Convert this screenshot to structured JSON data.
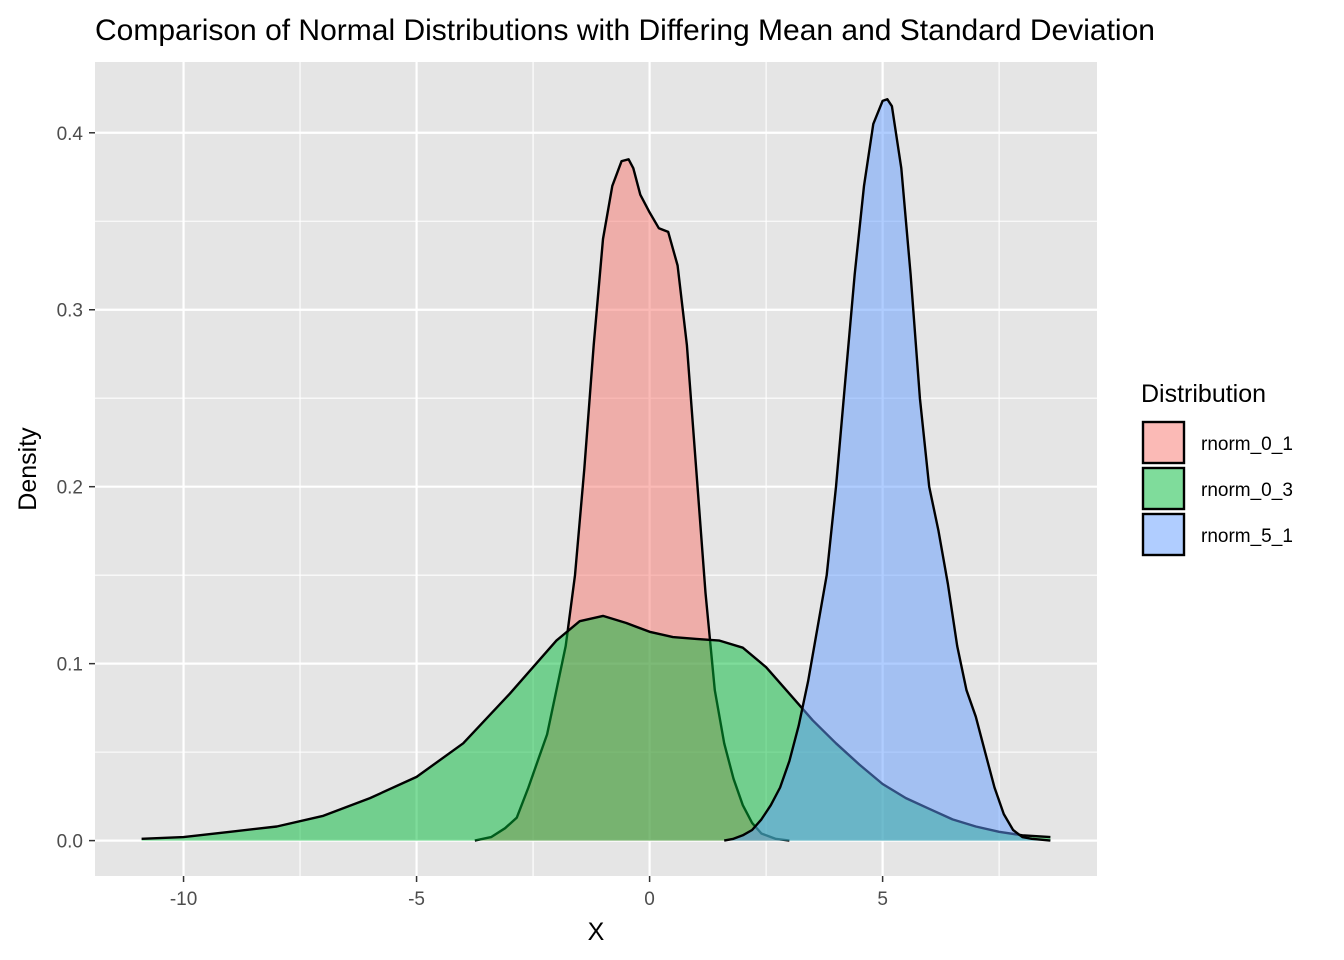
{
  "chart_data": {
    "type": "area",
    "title": "Comparison of Normal Distributions with Differing Mean and Standard Deviation",
    "xlabel": "X",
    "ylabel": "Density",
    "xlim": [
      -11.9,
      9.6
    ],
    "ylim": [
      -0.02,
      0.44
    ],
    "x_ticks": [
      -10,
      -5,
      0,
      5
    ],
    "x_tick_labels": [
      "-10",
      "-5",
      "0",
      "5"
    ],
    "y_ticks": [
      0.0,
      0.1,
      0.2,
      0.3,
      0.4
    ],
    "y_tick_labels": [
      "0.0",
      "0.1",
      "0.2",
      "0.3",
      "0.4"
    ],
    "grid": true,
    "panel_background": "#e5e5e5",
    "legend": {
      "title": "Distribution",
      "placement": "right"
    },
    "series": [
      {
        "name": "rnorm_0_1",
        "color": "#f8766d",
        "x": [
          -3.75,
          -3.4,
          -3.1,
          -2.85,
          -2.6,
          -2.4,
          -2.2,
          -2.0,
          -1.8,
          -1.6,
          -1.4,
          -1.2,
          -1.0,
          -0.8,
          -0.6,
          -0.45,
          -0.35,
          -0.2,
          0.0,
          0.2,
          0.4,
          0.6,
          0.8,
          1.0,
          1.2,
          1.4,
          1.6,
          1.8,
          2.0,
          2.2,
          2.4,
          2.7,
          3.0
        ],
        "y": [
          0.0,
          0.002,
          0.007,
          0.013,
          0.03,
          0.045,
          0.06,
          0.085,
          0.11,
          0.15,
          0.21,
          0.28,
          0.34,
          0.37,
          0.384,
          0.385,
          0.38,
          0.365,
          0.355,
          0.346,
          0.344,
          0.325,
          0.28,
          0.21,
          0.14,
          0.085,
          0.055,
          0.035,
          0.02,
          0.01,
          0.004,
          0.001,
          0.0
        ]
      },
      {
        "name": "rnorm_0_3",
        "color": "#00ba38",
        "x": [
          -10.9,
          -10.0,
          -9.0,
          -8.0,
          -7.0,
          -6.0,
          -5.0,
          -4.0,
          -3.0,
          -2.0,
          -1.5,
          -1.0,
          -0.5,
          0.0,
          0.5,
          1.0,
          1.5,
          2.0,
          2.5,
          3.0,
          3.5,
          4.0,
          4.5,
          5.0,
          5.5,
          6.0,
          6.5,
          7.0,
          7.5,
          8.0,
          8.6
        ],
        "y": [
          0.001,
          0.002,
          0.005,
          0.008,
          0.014,
          0.024,
          0.036,
          0.055,
          0.083,
          0.113,
          0.124,
          0.127,
          0.123,
          0.118,
          0.115,
          0.114,
          0.113,
          0.109,
          0.098,
          0.083,
          0.068,
          0.055,
          0.043,
          0.032,
          0.024,
          0.018,
          0.012,
          0.008,
          0.005,
          0.003,
          0.002
        ]
      },
      {
        "name": "rnorm_5_1",
        "color": "#619cff",
        "x": [
          1.6,
          1.8,
          2.0,
          2.2,
          2.4,
          2.6,
          2.8,
          3.0,
          3.2,
          3.4,
          3.6,
          3.8,
          4.0,
          4.2,
          4.4,
          4.6,
          4.8,
          5.0,
          5.1,
          5.2,
          5.4,
          5.6,
          5.8,
          6.0,
          6.2,
          6.4,
          6.6,
          6.8,
          7.0,
          7.2,
          7.4,
          7.6,
          7.8,
          8.0,
          8.2,
          8.6
        ],
        "y": [
          0.0,
          0.001,
          0.003,
          0.006,
          0.012,
          0.02,
          0.03,
          0.045,
          0.065,
          0.09,
          0.12,
          0.15,
          0.2,
          0.26,
          0.32,
          0.37,
          0.405,
          0.418,
          0.419,
          0.415,
          0.38,
          0.32,
          0.25,
          0.2,
          0.175,
          0.145,
          0.11,
          0.085,
          0.07,
          0.05,
          0.03,
          0.015,
          0.006,
          0.002,
          0.001,
          0.0
        ]
      }
    ]
  }
}
